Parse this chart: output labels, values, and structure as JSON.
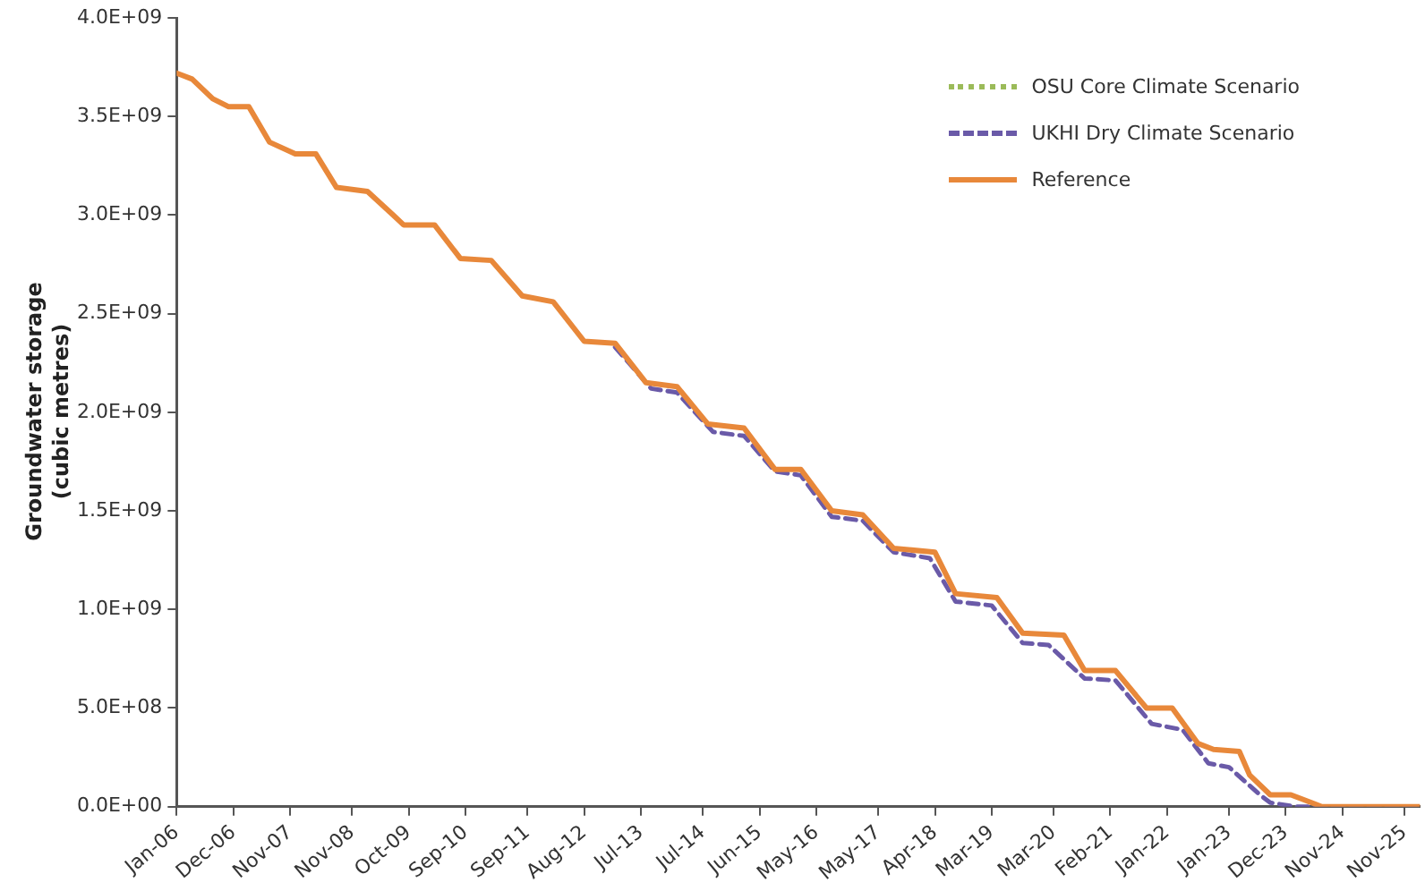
{
  "chart_data": {
    "type": "line",
    "ylabel": "Groundwater storage (cubic metres)",
    "series": [
      {
        "name": "OSU Core Climate Scenario",
        "color": "#9bbb59",
        "line_style": "dotted"
      },
      {
        "name": "UKHI Dry Climate Scenario",
        "color": "#6a5aa8",
        "line_style": "dashed",
        "x": [
          "2013-02",
          "2013-09",
          "2014-02",
          "2014-09",
          "2015-03",
          "2015-09",
          "2016-02",
          "2016-08",
          "2017-02",
          "2017-08",
          "2018-03",
          "2018-08",
          "2019-03",
          "2019-09",
          "2020-02",
          "2020-09",
          "2021-03",
          "2021-10",
          "2022-04",
          "2022-09",
          "2023-01",
          "2023-07",
          "2023-09",
          "2024-02",
          "2026-02"
        ],
        "values": [
          2330000000,
          2120000000,
          2100000000,
          1900000000,
          1880000000,
          1700000000,
          1680000000,
          1470000000,
          1450000000,
          1290000000,
          1260000000,
          1040000000,
          1020000000,
          830000000,
          820000000,
          650000000,
          640000000,
          420000000,
          390000000,
          220000000,
          200000000,
          60000000,
          20000000,
          0,
          0
        ]
      },
      {
        "name": "Reference",
        "color": "#e8883a",
        "line_style": "solid",
        "x": [
          "2006-01",
          "2006-04",
          "2006-08",
          "2006-11",
          "2007-03",
          "2007-07",
          "2007-12",
          "2008-04",
          "2008-08",
          "2009-02",
          "2009-07",
          "2009-09",
          "2010-03",
          "2010-08",
          "2011-02",
          "2011-08",
          "2012-02",
          "2012-08",
          "2013-02",
          "2013-08",
          "2014-02",
          "2014-08",
          "2015-03",
          "2015-09",
          "2016-02",
          "2016-08",
          "2017-02",
          "2017-08",
          "2018-04",
          "2018-08",
          "2019-04",
          "2019-09",
          "2020-05",
          "2020-09",
          "2021-03",
          "2021-09",
          "2022-02",
          "2022-07",
          "2022-10",
          "2023-03",
          "2023-05",
          "2023-09",
          "2024-01",
          "2024-05",
          "2024-07",
          "2026-02"
        ],
        "values": [
          3720000000,
          3690000000,
          3590000000,
          3550000000,
          3550000000,
          3370000000,
          3310000000,
          3310000000,
          3140000000,
          3120000000,
          3000000000,
          2950000000,
          2950000000,
          2780000000,
          2770000000,
          2590000000,
          2560000000,
          2360000000,
          2350000000,
          2150000000,
          2130000000,
          1940000000,
          1920000000,
          1710000000,
          1710000000,
          1500000000,
          1480000000,
          1310000000,
          1290000000,
          1080000000,
          1060000000,
          880000000,
          870000000,
          690000000,
          690000000,
          500000000,
          500000000,
          320000000,
          290000000,
          280000000,
          160000000,
          60000000,
          60000000,
          20000000,
          0,
          0
        ]
      }
    ],
    "xlim": [
      "2006-01",
      "2026-02"
    ],
    "xticks": [
      {
        "value": "2006-01",
        "label": "Jan-06"
      },
      {
        "value": "2006-12",
        "label": "Dec-06"
      },
      {
        "value": "2007-11",
        "label": "Nov-07"
      },
      {
        "value": "2008-11",
        "label": "Nov-08"
      },
      {
        "value": "2009-10",
        "label": "Oct-09"
      },
      {
        "value": "2010-09",
        "label": "Sep-10"
      },
      {
        "value": "2011-09",
        "label": "Sep-11"
      },
      {
        "value": "2012-08",
        "label": "Aug-12"
      },
      {
        "value": "2013-07",
        "label": "Jul-13"
      },
      {
        "value": "2014-07",
        "label": "Jul-14"
      },
      {
        "value": "2015-06",
        "label": "Jun-15"
      },
      {
        "value": "2016-05",
        "label": "May-16"
      },
      {
        "value": "2017-05",
        "label": "May-17"
      },
      {
        "value": "2018-04",
        "label": "Apr-18"
      },
      {
        "value": "2019-03",
        "label": "Mar-19"
      },
      {
        "value": "2020-03",
        "label": "Mar-20"
      },
      {
        "value": "2021-02",
        "label": "Feb-21"
      },
      {
        "value": "2022-01",
        "label": "Jan-22"
      },
      {
        "value": "2023-01",
        "label": "Jan-23"
      },
      {
        "value": "2023-12",
        "label": "Dec-23"
      },
      {
        "value": "2024-11",
        "label": "Nov-24"
      },
      {
        "value": "2025-11",
        "label": "Nov-25"
      }
    ],
    "ylim": [
      0,
      4000000000
    ],
    "yticks": [
      {
        "value": 0,
        "label": "0.0E+00"
      },
      {
        "value": 500000000,
        "label": "5.0E+08"
      },
      {
        "value": 1000000000,
        "label": "1.0E+09"
      },
      {
        "value": 1500000000,
        "label": "1.5E+09"
      },
      {
        "value": 2000000000,
        "label": "2.0E+09"
      },
      {
        "value": 2500000000,
        "label": "2.5E+09"
      },
      {
        "value": 3000000000,
        "label": "3.0E+09"
      },
      {
        "value": 3500000000,
        "label": "3.5E+09"
      },
      {
        "value": 4000000000,
        "label": "4.0E+09"
      }
    ],
    "grid": false,
    "legend": "top right",
    "marker": "none"
  }
}
